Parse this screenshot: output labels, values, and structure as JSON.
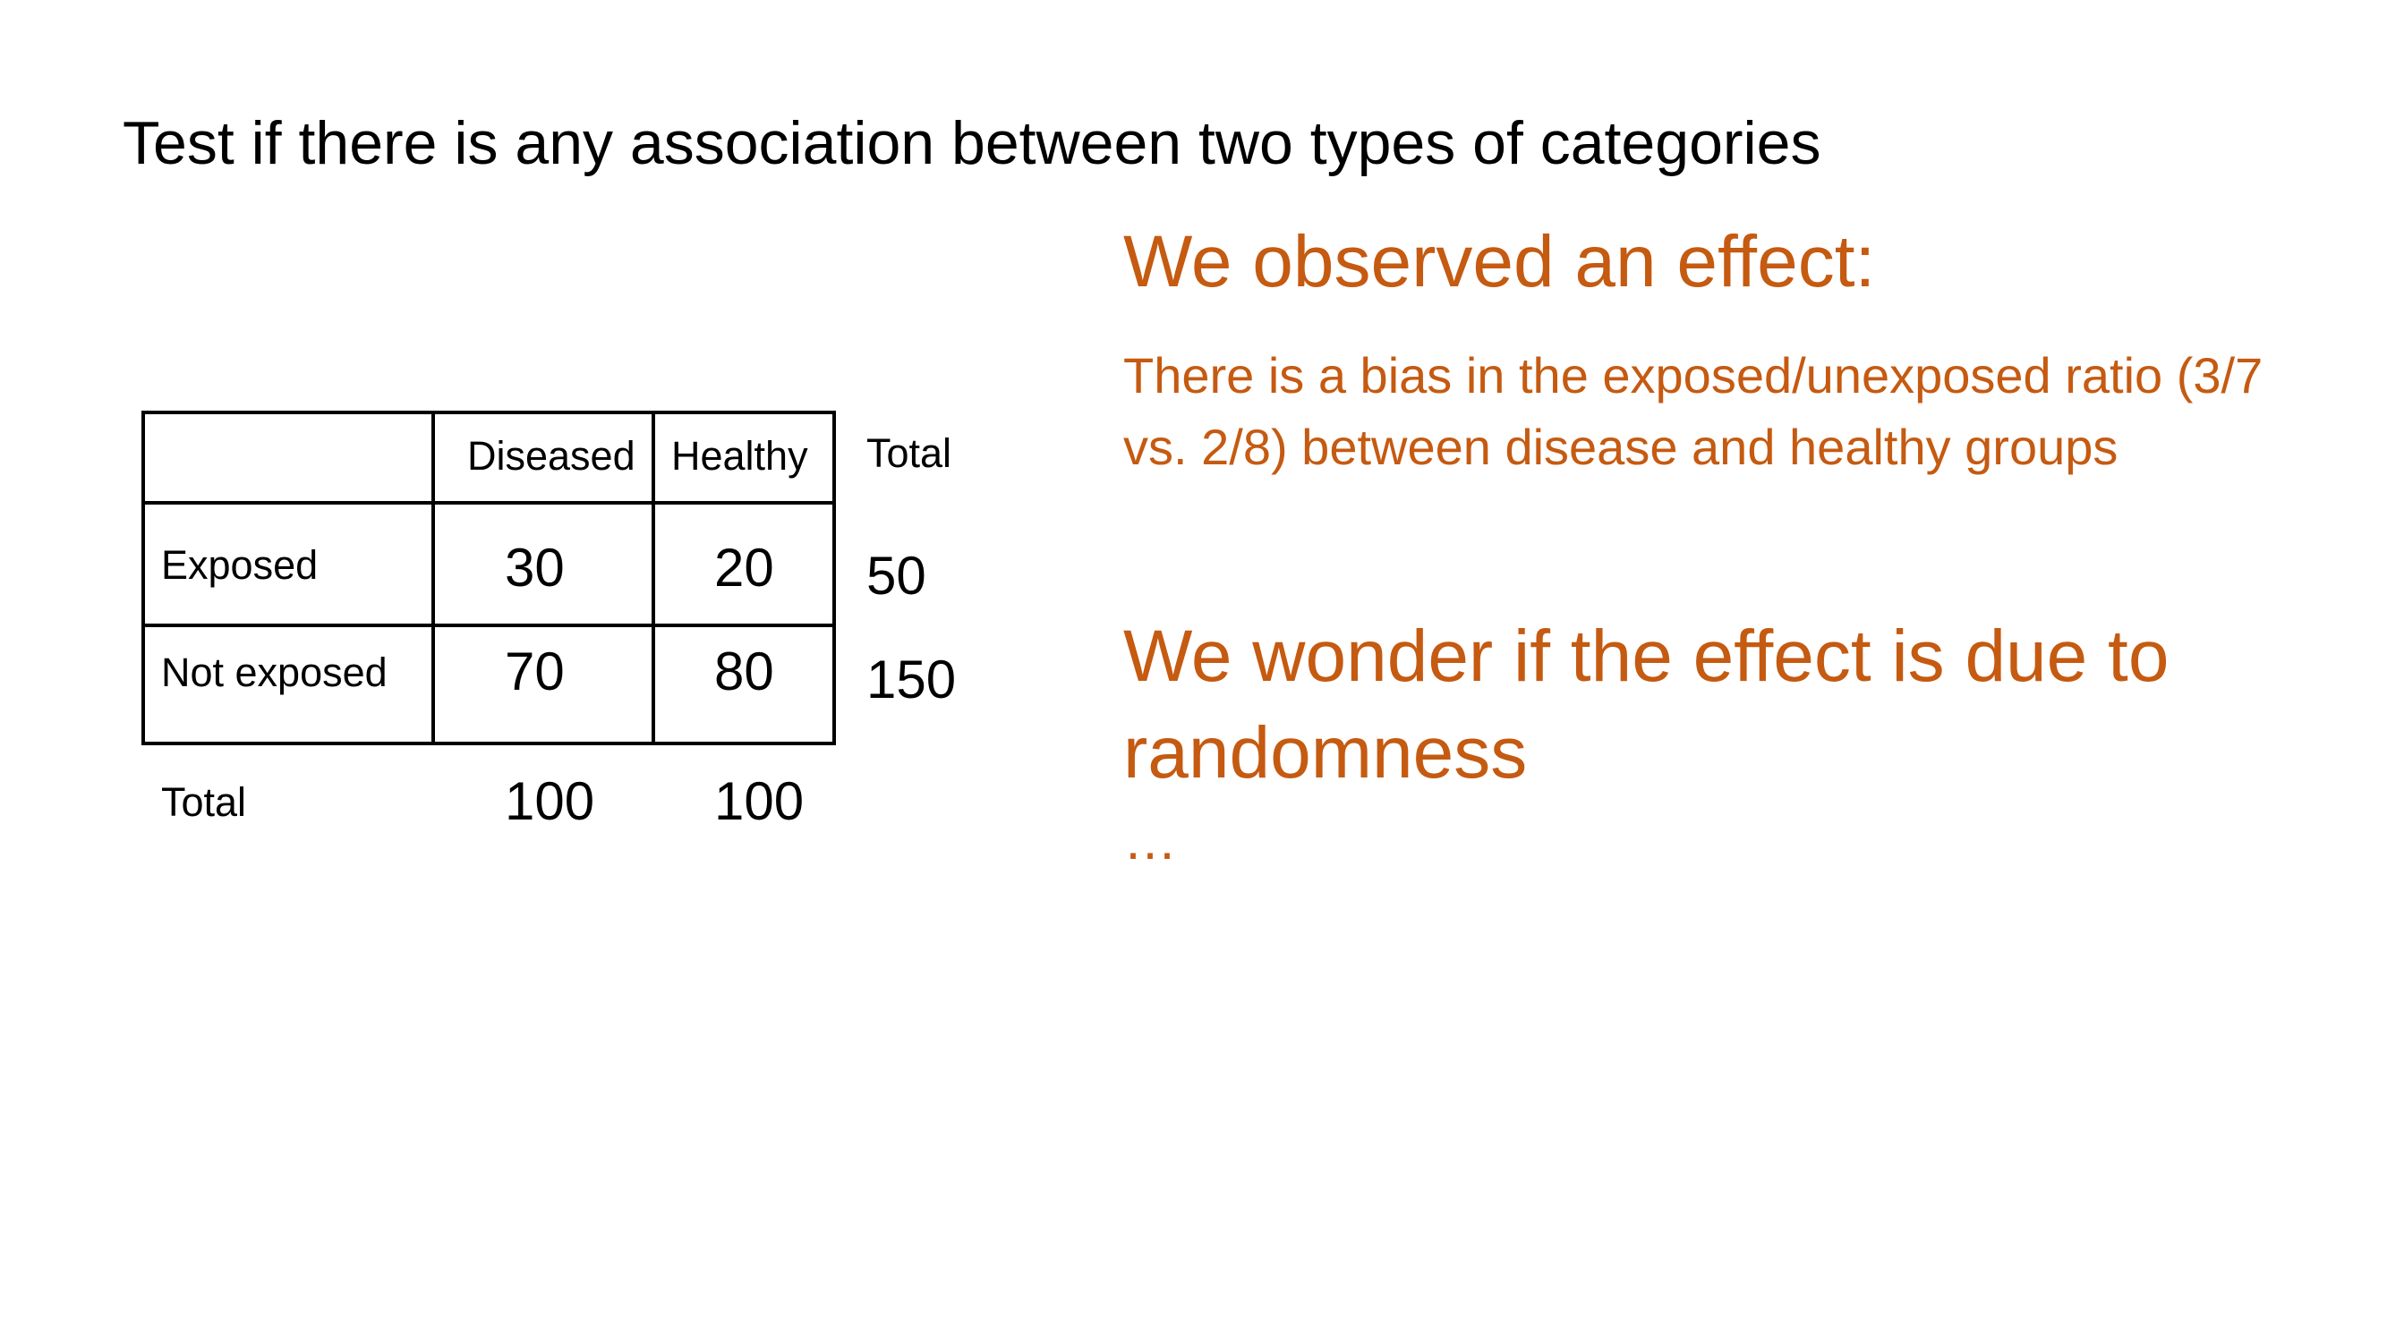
{
  "slide": {
    "title": "Test if there is any association between two types of categories"
  },
  "table": {
    "columns": [
      "Diseased",
      "Healthy"
    ],
    "total_col_label": "Total",
    "rows": [
      {
        "label": "Exposed",
        "values": [
          "30",
          "20"
        ],
        "total": "50"
      },
      {
        "label": "Not exposed",
        "values": [
          "70",
          "80"
        ],
        "total": "150"
      }
    ],
    "total_row": {
      "label": "Total",
      "values": [
        "100",
        "100"
      ]
    }
  },
  "notes": {
    "effect_heading": "We observed an effect:",
    "effect_body": "There is a bias in the exposed/unexposed ratio (3/7 vs. 2/8) between disease and healthy groups",
    "wonder": "We wonder if the effect is due to randomness",
    "ellipsis": "…"
  },
  "colors": {
    "accent": "#C55A11",
    "text": "#000000"
  }
}
